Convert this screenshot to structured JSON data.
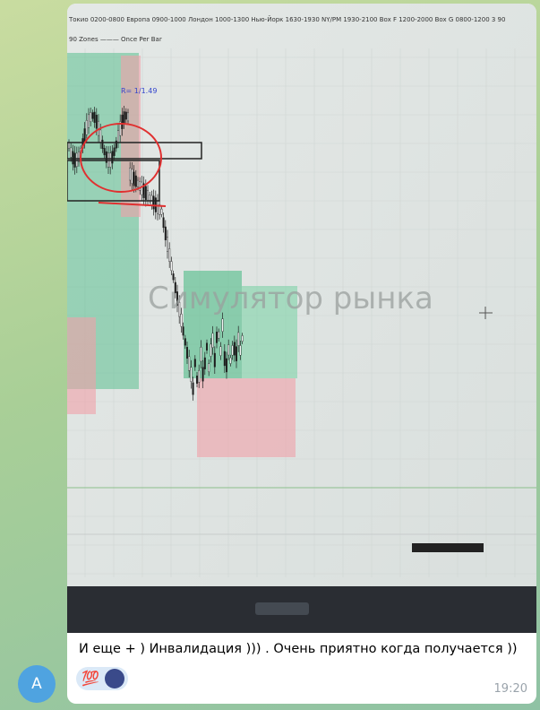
{
  "message": {
    "sender_initial": "A",
    "photo": {
      "header_text": "Токио 0200-0800 Европа 0900-1000 Лондон 1000-1300 Нью-Йорк 1630-1930 NY/PM 1930-2100 Box F 1200-2000 Box G 0800-1200 3 90",
      "zones_label": "90 Zones ——— Once Per Bar",
      "annotation": "R= 1/1.49",
      "watermark": "Симулятор рынка"
    },
    "text": "И еще + ) Инвалидация ))) . Очень приятно когда получается ))",
    "reaction": "💯",
    "time": "19:20"
  }
}
